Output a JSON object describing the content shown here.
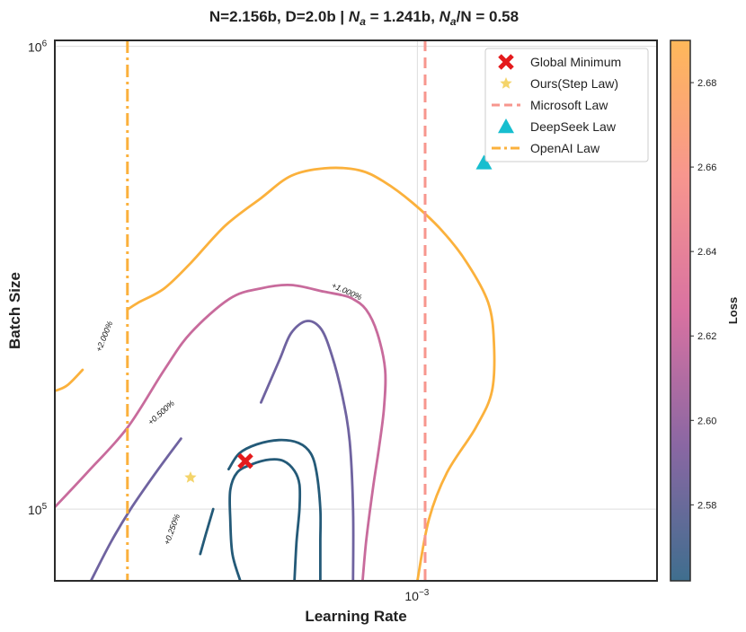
{
  "chart_data": {
    "type": "contour",
    "title": "N=2.156b, D=2.0b | N_a = 1.241b, N_a/N = 0.58",
    "title_parts": {
      "main": "N=2.156b, D=2.0b | ",
      "na_symbol": "N",
      "na_sub": "a",
      "na_value": " = 1.241b, ",
      "ratio_symbol": "N",
      "ratio_sub": "a",
      "ratio_rest": "/N = 0.58"
    },
    "xlabel": "Learning Rate",
    "ylabel": "Batch Size",
    "xscale": "log",
    "yscale": "log",
    "xlim": [
      0.00025,
      0.0025
    ],
    "ylim": [
      70000,
      1030000
    ],
    "x_ticks": [
      {
        "value": 0.001,
        "base": "10",
        "exp": "−3"
      }
    ],
    "y_ticks": [
      {
        "value": 100000,
        "base": "10",
        "exp": "5"
      },
      {
        "value": 1000000,
        "base": "10",
        "exp": "6"
      }
    ],
    "grid": true,
    "colorbar": {
      "label": "Loss",
      "range": [
        2.562,
        2.69
      ],
      "ticks": [
        "2.58",
        "2.60",
        "2.62",
        "2.64",
        "2.66",
        "2.68"
      ],
      "tick_values": [
        2.58,
        2.6,
        2.62,
        2.64,
        2.66,
        2.68
      ],
      "colors": [
        "#3f6e8e",
        "#8a67a3",
        "#d972a1",
        "#f7968e",
        "#ffb85a"
      ]
    },
    "contours": [
      {
        "label": "+0.250%",
        "color": "#245a78",
        "points": [
          [
            0.000508,
            70000
          ],
          [
            0.000493,
            80000
          ],
          [
            0.000489,
            95000
          ],
          [
            0.000489,
            110000
          ],
          [
            0.000502,
            120000
          ],
          [
            0.000531,
            125000
          ],
          [
            0.000569,
            128000
          ],
          [
            0.0006,
            127000
          ],
          [
            0.000625,
            121000
          ],
          [
            0.000637,
            113000
          ],
          [
            0.000637,
            100000
          ],
          [
            0.00063,
            85000
          ],
          [
            0.000625,
            70000
          ]
        ]
      },
      {
        "label": "+0.250%",
        "color": "#245a78",
        "points": [
          [
            0.000436,
            80000
          ],
          [
            0.000445,
            88000
          ],
          [
            0.000458,
            100000
          ]
        ]
      },
      {
        "label": "+0.250%",
        "color": "#245a78",
        "points": [
          [
            0.000486,
            122000
          ],
          [
            0.000506,
            132000
          ],
          [
            0.000541,
            138000
          ],
          [
            0.000589,
            141000
          ],
          [
            0.000635,
            139000
          ],
          [
            0.000665,
            132000
          ],
          [
            0.00068,
            120000
          ],
          [
            0.00069,
            100000
          ],
          [
            0.00069,
            85000
          ],
          [
            0.00069,
            70000
          ]
        ]
      },
      {
        "label": "+0.500%",
        "color": "#6f63a0",
        "points": [
          [
            0.000287,
            70000
          ],
          [
            0.00031,
            85000
          ],
          [
            0.000334,
            100000
          ],
          [
            0.000368,
            120000
          ],
          [
            0.000405,
            142000
          ]
        ]
      },
      {
        "label": "+0.500%",
        "color": "#6f63a0",
        "points": [
          [
            0.00055,
            170000
          ],
          [
            0.00059,
            210000
          ],
          [
            0.000617,
            240000
          ],
          [
            0.000655,
            255000
          ],
          [
            0.000692,
            245000
          ],
          [
            0.000721,
            215000
          ],
          [
            0.000751,
            175000
          ],
          [
            0.000772,
            140000
          ],
          [
            0.000782,
            100000
          ],
          [
            0.000782,
            70000
          ]
        ]
      },
      {
        "label": "+1.000%",
        "color": "#c86b9c",
        "points": [
          [
            0.00025,
            101000
          ],
          [
            0.000283,
            120000
          ],
          [
            0.00033,
            150000
          ],
          [
            0.00038,
            200000
          ],
          [
            0.00042,
            240000
          ],
          [
            0.000488,
            285000
          ],
          [
            0.00055,
            300000
          ],
          [
            0.000617,
            305000
          ],
          [
            0.0007,
            295000
          ],
          [
            0.00075,
            290000
          ],
          [
            0.00078,
            285000
          ],
          [
            0.000822,
            270000
          ],
          [
            0.000858,
            240000
          ],
          [
            0.000884,
            200000
          ],
          [
            0.00088,
            165000
          ],
          [
            0.000863,
            135000
          ],
          [
            0.000843,
            110000
          ],
          [
            0.000822,
            85000
          ],
          [
            0.000811,
            70000
          ]
        ]
      },
      {
        "label": "+2.000%",
        "color": "#fbb13c",
        "points": [
          [
            0.00025,
            180000
          ],
          [
            0.000262,
            185000
          ],
          [
            0.000278,
            200000
          ]
        ]
      },
      {
        "label": "+2.000%",
        "color": "#fbb13c",
        "points": [
          [
            0.00033,
            270000
          ],
          [
            0.000345,
            280000
          ],
          [
            0.00038,
            300000
          ],
          [
            0.00042,
            340000
          ],
          [
            0.00048,
            410000
          ],
          [
            0.00055,
            470000
          ],
          [
            0.000617,
            525000
          ],
          [
            0.0007,
            545000
          ],
          [
            0.0008,
            540000
          ],
          [
            0.00088,
            510000
          ],
          [
            0.00098,
            460000
          ],
          [
            0.001098,
            400000
          ],
          [
            0.00121,
            340000
          ],
          [
            0.00131,
            280000
          ],
          [
            0.00134,
            230000
          ],
          [
            0.00133,
            180000
          ],
          [
            0.00125,
            150000
          ],
          [
            0.00112,
            120000
          ],
          [
            0.001045,
            95000
          ],
          [
            0.001,
            70000
          ]
        ]
      }
    ],
    "microsoft_law": {
      "x": 0.00103,
      "color": "#f7968e"
    },
    "openai_law": {
      "x": 0.00033,
      "color": "#fbb13c"
    },
    "points": [
      {
        "name": "Global Minimum",
        "x": 0.000518,
        "y": 127000,
        "color": "#e41a1c",
        "marker": "x"
      },
      {
        "name": "Ours(Step Law)",
        "x": 0.00042,
        "y": 117000,
        "color": "#f4d46a",
        "marker": "star"
      },
      {
        "name": "DeepSeek Law",
        "x": 0.00129,
        "y": 560000,
        "color": "#17becf",
        "marker": "triangle"
      }
    ],
    "legend": {
      "position": "top-right",
      "entries": [
        {
          "name": "Global Minimum",
          "marker": "x",
          "color": "#e41a1c"
        },
        {
          "name": "Ours(Step Law)",
          "marker": "star",
          "color": "#f4d46a"
        },
        {
          "name": "Microsoft Law",
          "marker": "dash",
          "color": "#f7968e"
        },
        {
          "name": "DeepSeek Law",
          "marker": "triangle",
          "color": "#17becf"
        },
        {
          "name": "OpenAI Law",
          "marker": "dashdot",
          "color": "#fbb13c"
        }
      ]
    }
  }
}
